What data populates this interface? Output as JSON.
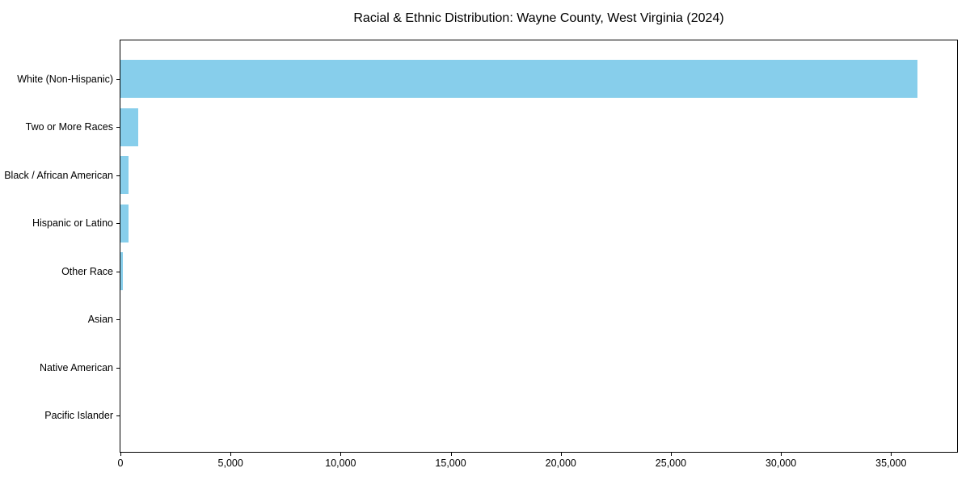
{
  "figure": {
    "title": "Racial & Ethnic Distribution: Wayne County, West Virginia (2024)"
  },
  "chart_data": {
    "type": "bar",
    "orientation": "horizontal",
    "title": "Racial & Ethnic Distribution: Wayne County, West Virginia (2024)",
    "categories": [
      "White (Non-Hispanic)",
      "Two or More Races",
      "Black / African American",
      "Hispanic or Latino",
      "Other Race",
      "Asian",
      "Native American",
      "Pacific Islander"
    ],
    "values": [
      36200,
      820,
      360,
      385,
      110,
      0,
      0,
      0
    ],
    "xlabel": "",
    "ylabel": "",
    "xlim": [
      0,
      38000
    ],
    "xticks": [
      0,
      5000,
      10000,
      15000,
      20000,
      25000,
      30000,
      35000
    ],
    "xtick_labels": [
      "0",
      "5,000",
      "10,000",
      "15,000",
      "20,000",
      "25,000",
      "30,000",
      "35,000"
    ],
    "bar_color": "#87CEEB",
    "grid": false,
    "legend": null
  }
}
